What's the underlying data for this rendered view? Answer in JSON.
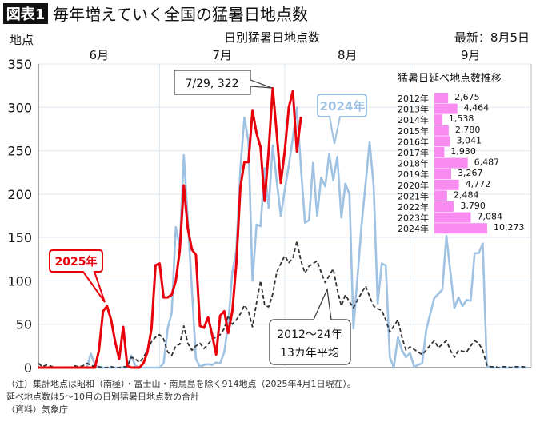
{
  "header": {
    "badge": "図表1",
    "title": "毎年増えていく全国の猛暑日地点数",
    "y_unit": "地点",
    "subtitle": "日別猛暑日地点数",
    "latest": "最新：8月5日"
  },
  "chart_data": [
    {
      "type": "line",
      "title": "日別猛暑日地点数",
      "ylabel": "地点",
      "ylim": [
        0,
        350
      ],
      "yticks": [
        "0",
        "50",
        "100",
        "150",
        "200",
        "250",
        "300",
        "350"
      ],
      "x_range": [
        "6/1",
        "9/30"
      ],
      "month_labels": [
        "6月",
        "7月",
        "8月",
        "9月"
      ],
      "grid": true,
      "series": [
        {
          "name": "2024年",
          "color": "#9fc2e3",
          "style": "solid",
          "values": [
            0,
            0,
            0,
            0,
            0,
            0,
            0,
            0,
            0,
            0,
            0,
            0,
            0,
            16,
            3,
            0,
            0,
            0,
            0,
            0,
            0,
            0,
            0,
            14,
            2,
            0,
            0,
            0,
            0,
            0,
            0,
            5,
            45,
            63,
            162,
            140,
            245,
            170,
            90,
            10,
            1,
            3,
            4,
            3,
            6,
            5,
            18,
            50,
            110,
            135,
            230,
            288,
            260,
            100,
            165,
            163,
            230,
            184,
            256,
            215,
            175,
            205,
            233,
            265,
            300,
            230,
            167,
            170,
            236,
            175,
            219,
            209,
            246,
            216,
            243,
            173,
            212,
            200,
            45,
            105,
            164,
            212,
            260,
            209,
            74,
            120,
            118,
            12,
            0,
            35,
            20,
            12,
            17,
            1,
            3,
            5,
            43,
            62,
            80,
            85,
            90,
            152,
            110,
            69,
            81,
            71,
            78,
            77,
            132,
            132,
            143,
            2,
            0,
            0,
            0,
            0,
            0,
            0,
            0,
            0,
            0,
            0
          ]
        },
        {
          "name": "2012～24年 13カ年平均",
          "color": "#333333",
          "style": "dashed",
          "values": [
            5,
            1,
            3,
            2,
            0,
            0,
            0,
            1,
            0,
            2,
            1,
            2,
            5,
            3,
            1,
            1,
            0,
            0,
            1,
            0,
            0,
            1,
            1,
            12,
            10,
            6,
            12,
            20,
            30,
            35,
            38,
            33,
            18,
            14,
            25,
            27,
            48,
            28,
            20,
            25,
            28,
            22,
            27,
            33,
            35,
            38,
            45,
            60,
            50,
            55,
            62,
            72,
            65,
            47,
            75,
            100,
            72,
            70,
            85,
            110,
            120,
            129,
            121,
            126,
            146,
            123,
            109,
            117,
            120,
            123,
            110,
            98,
            106,
            114,
            90,
            71,
            84,
            76,
            69,
            78,
            86,
            94,
            82,
            71,
            68,
            66,
            55,
            41,
            48,
            55,
            35,
            20,
            24,
            21,
            18,
            15,
            20,
            26,
            31,
            23,
            27,
            31,
            20,
            12,
            20,
            19,
            18,
            25,
            31,
            28,
            20,
            3,
            1,
            1,
            0,
            1,
            1,
            0,
            1,
            1,
            1,
            0
          ]
        },
        {
          "name": "2025年",
          "color": "#e8000b",
          "style": "solid",
          "values": [
            0,
            0,
            0,
            0,
            0,
            0,
            0,
            0,
            0,
            0,
            0,
            0,
            0,
            0,
            0,
            20,
            65,
            71,
            55,
            30,
            10,
            47,
            2,
            0,
            0,
            0,
            5,
            18,
            45,
            118,
            120,
            81,
            81,
            84,
            100,
            135,
            210,
            160,
            136,
            130,
            48,
            46,
            58,
            38,
            15,
            60,
            65,
            40,
            65,
            120,
            208,
            237,
            237,
            296,
            270,
            254,
            192,
            250,
            322,
            270,
            213,
            250,
            300,
            319,
            249,
            289
          ]
        }
      ],
      "annotations": {
        "peak": "7/29, 322",
        "label_2025": "2025年",
        "label_2024": "2024年",
        "label_avg_line1": "2012～24年",
        "label_avg_line2": "13カ年平均"
      }
    },
    {
      "type": "bar",
      "orientation": "horizontal",
      "title": "猛暑日延べ地点数推移",
      "color": "#f98cf0",
      "categories": [
        "2012年",
        "2013年",
        "2014年",
        "2015年",
        "2016年",
        "2017年",
        "2018年",
        "2019年",
        "2020年",
        "2021年",
        "2022年",
        "2023年",
        "2024年"
      ],
      "values": [
        2675,
        4464,
        1538,
        2780,
        3041,
        1930,
        6487,
        3267,
        4772,
        2484,
        3790,
        7084,
        10273
      ],
      "value_labels": [
        "2,675",
        "4,464",
        "1,538",
        "2,780",
        "3,041",
        "1,930",
        "6,487",
        "3,267",
        "4,772",
        "2,484",
        "3,790",
        "7,084",
        "10,273"
      ]
    }
  ],
  "notes": [
    "（注）集計地点は昭和（南極）・富士山・南鳥島を除く914地点（2025年4月1日現在）。",
    "延べ地点数は5～10月の日別猛暑日地点数の合計",
    "（資料）気象庁"
  ]
}
